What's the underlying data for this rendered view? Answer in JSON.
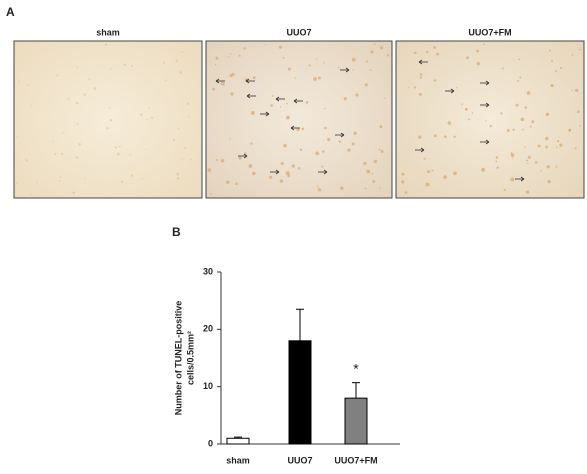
{
  "panel_a": {
    "label": "A",
    "titles": [
      "sham",
      "UUO7",
      "UUO7+FM"
    ]
  },
  "panel_b_label": "B",
  "chart_data": {
    "type": "bar",
    "ylabel": [
      "Number of  TUNEL-positive",
      "cells/0.5mm²"
    ],
    "categories": [
      "sham",
      "UUO7",
      "UUO7+FM"
    ],
    "values": [
      1,
      18,
      8
    ],
    "errors": [
      0.2,
      5.5,
      2.7
    ],
    "colors": [
      "#ffffff",
      "#000000",
      "#808080"
    ],
    "annotations": [
      null,
      null,
      "*"
    ],
    "ylim": [
      0,
      30
    ],
    "yticks": [
      0,
      10,
      20,
      30
    ],
    "grid": false
  }
}
